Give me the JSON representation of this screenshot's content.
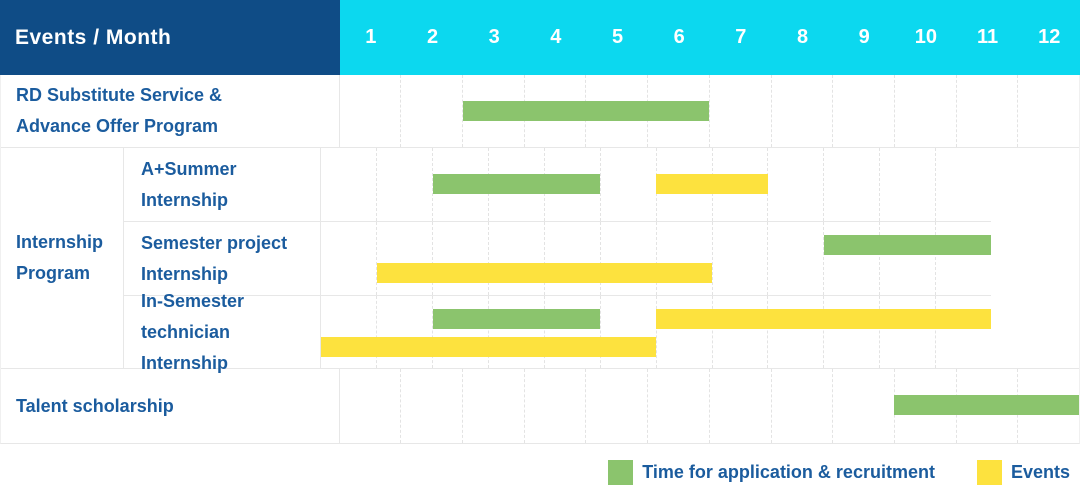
{
  "header": {
    "title": "Events / Month",
    "months": [
      "1",
      "2",
      "3",
      "4",
      "5",
      "6",
      "7",
      "8",
      "9",
      "10",
      "11",
      "12"
    ]
  },
  "colors": {
    "header_bg": "#0f4c86",
    "months_bg": "#0cd8ef",
    "label_text": "#1b5c9e",
    "application_bar": "#8bc46d",
    "events_bar": "#fde23e"
  },
  "group": {
    "label_line1": "Internship",
    "label_line2": "Program"
  },
  "rows": [
    {
      "label_line1": "RD Substitute Service &",
      "label_line2": "Advance Offer Program",
      "bars": [
        {
          "color": "green",
          "start": 3,
          "end": 6,
          "lane": "center"
        }
      ]
    },
    {
      "label_line1": "A+Summer",
      "label_line2": "Internship",
      "bars": [
        {
          "color": "green",
          "start": 3,
          "end": 5,
          "lane": "center"
        },
        {
          "color": "yellow",
          "start": 7,
          "end": 8,
          "lane": "center"
        }
      ]
    },
    {
      "label_line1": "Semester project",
      "label_line2": "Internship",
      "bars": [
        {
          "color": "green",
          "start": 10,
          "end": 12,
          "lane": "top"
        },
        {
          "color": "yellow",
          "start": 2,
          "end": 7,
          "lane": "bottom"
        }
      ]
    },
    {
      "label_line1": "In-Semester",
      "label_line2": "technician Internship",
      "bars": [
        {
          "color": "green",
          "start": 3,
          "end": 5,
          "lane": "top"
        },
        {
          "color": "yellow",
          "start": 7,
          "end": 12,
          "lane": "top"
        },
        {
          "color": "yellow",
          "start": 1,
          "end": 6,
          "lane": "bottom"
        }
      ]
    },
    {
      "label_line1": "Talent scholarship",
      "label_line2": "",
      "bars": [
        {
          "color": "green",
          "start": 10,
          "end": 12,
          "lane": "center"
        }
      ]
    }
  ],
  "legend": [
    {
      "color": "green",
      "label": "Time for application & recruitment"
    },
    {
      "color": "yellow",
      "label": "Events"
    }
  ],
  "chart_data": {
    "type": "table",
    "title": "Events / Month",
    "x_axis": {
      "label": "Month",
      "ticks": [
        1,
        2,
        3,
        4,
        5,
        6,
        7,
        8,
        9,
        10,
        11,
        12
      ],
      "range": [
        1,
        12
      ]
    },
    "grid": true,
    "legend_position": "bottom-right",
    "legend": [
      "Time for application & recruitment",
      "Events"
    ],
    "rows": [
      {
        "event": "RD Substitute Service & Advance Offer Program",
        "group": null,
        "application_recruitment_months": [
          [
            3,
            6
          ]
        ],
        "events_months": []
      },
      {
        "event": "A+Summer Internship",
        "group": "Internship Program",
        "application_recruitment_months": [
          [
            3,
            5
          ]
        ],
        "events_months": [
          [
            7,
            8
          ]
        ]
      },
      {
        "event": "Semester project Internship",
        "group": "Internship Program",
        "application_recruitment_months": [
          [
            10,
            12
          ]
        ],
        "events_months": [
          [
            2,
            7
          ]
        ]
      },
      {
        "event": "In-Semester technician Internship",
        "group": "Internship Program",
        "application_recruitment_months": [
          [
            3,
            5
          ]
        ],
        "events_months": [
          [
            7,
            12
          ],
          [
            1,
            6
          ]
        ]
      },
      {
        "event": "Talent scholarship",
        "group": null,
        "application_recruitment_months": [
          [
            10,
            12
          ]
        ],
        "events_months": []
      }
    ]
  }
}
